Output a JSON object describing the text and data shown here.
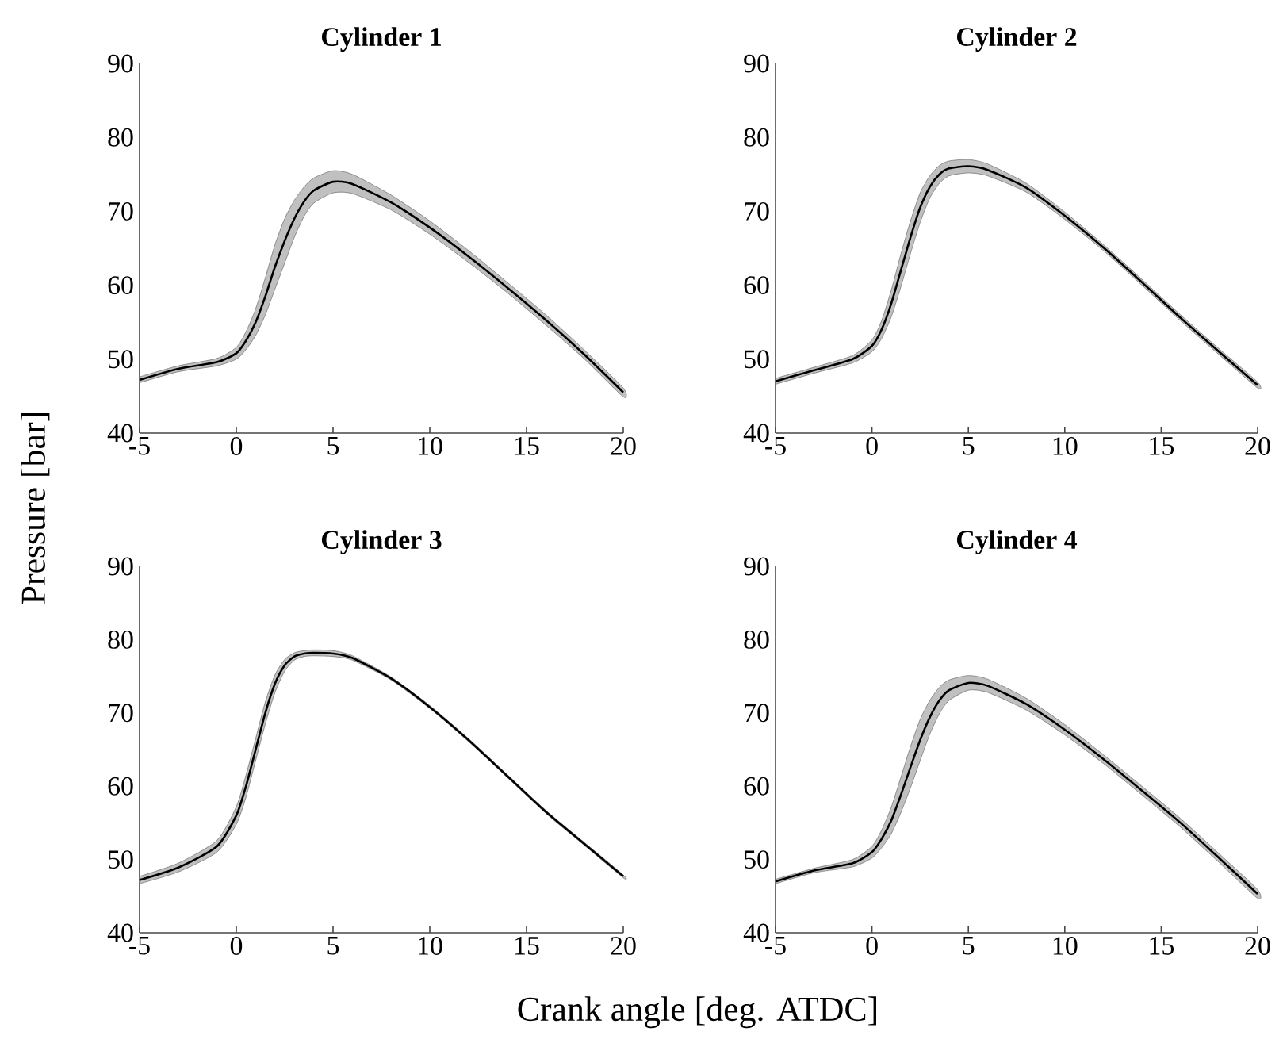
{
  "chart_data": [
    {
      "type": "line",
      "title": "Cylinder 1",
      "ylabel": "Pressure [bar]",
      "xlabel": "Crank angle [deg. ATDC]",
      "xlim": [
        -5,
        20
      ],
      "ylim": [
        40,
        90
      ],
      "xticks": [
        -5,
        0,
        5,
        10,
        15,
        20
      ],
      "yticks": [
        40,
        50,
        60,
        70,
        80,
        90
      ],
      "x": [
        -5,
        -3,
        -1,
        0,
        0.5,
        1,
        1.5,
        2,
        2.5,
        3,
        3.5,
        4,
        5,
        6,
        8,
        10,
        12,
        14,
        16,
        18,
        20
      ],
      "series": [
        {
          "color": "#000000",
          "values": [
            47.2,
            48.7,
            49.6,
            50.8,
            52.5,
            55,
            58.5,
            62.5,
            66,
            69,
            71.3,
            72.8,
            74,
            73.7,
            71.2,
            67.8,
            63.9,
            59.7,
            55.3,
            50.6,
            45.5
          ],
          "lower": [
            46.8,
            48.3,
            49.1,
            50.0,
            51.3,
            53.2,
            56.0,
            59.5,
            63.0,
            66.5,
            69.3,
            71.1,
            72.5,
            72.4,
            70.2,
            66.9,
            63.1,
            59.0,
            54.6,
            50.0,
            44.9
          ],
          "upper": [
            47.6,
            49.1,
            50.1,
            51.6,
            53.7,
            56.8,
            61.0,
            65.5,
            69.0,
            71.5,
            73.3,
            74.5,
            75.5,
            75.0,
            72.2,
            68.7,
            64.7,
            60.4,
            56.0,
            51.2,
            46.1
          ]
        }
      ]
    },
    {
      "type": "line",
      "title": "Cylinder 2",
      "xlim": [
        -5,
        20
      ],
      "ylim": [
        40,
        90
      ],
      "xticks": [
        -5,
        0,
        5,
        10,
        15,
        20
      ],
      "yticks": [
        40,
        50,
        60,
        70,
        80,
        90
      ],
      "x": [
        -5,
        -3,
        -1,
        0,
        0.5,
        1,
        1.5,
        2,
        2.5,
        3,
        3.5,
        4,
        5,
        6,
        8,
        10,
        12,
        14,
        16,
        18,
        20
      ],
      "series": [
        {
          "color": "#000000",
          "values": [
            47,
            48.5,
            50,
            51.8,
            54,
            57.5,
            62,
            66.5,
            70.5,
            73.3,
            75,
            75.8,
            76.1,
            75.6,
            73.2,
            69.4,
            65.1,
            60.4,
            55.6,
            51,
            46.5
          ],
          "lower": [
            46.6,
            48.1,
            49.5,
            51.0,
            52.8,
            55.7,
            59.8,
            64.3,
            68.5,
            71.8,
            73.8,
            74.8,
            75.2,
            74.8,
            72.6,
            68.9,
            64.7,
            60.0,
            55.2,
            50.6,
            46.1
          ],
          "upper": [
            47.4,
            48.9,
            50.5,
            52.6,
            55.2,
            59.3,
            64.2,
            68.7,
            72.5,
            74.8,
            76.2,
            76.8,
            77.0,
            76.4,
            73.8,
            69.9,
            65.5,
            60.8,
            56.0,
            51.4,
            46.9
          ]
        }
      ]
    },
    {
      "type": "line",
      "title": "Cylinder 3",
      "xlim": [
        -5,
        20
      ],
      "ylim": [
        40,
        90
      ],
      "xticks": [
        -5,
        0,
        5,
        10,
        15,
        20
      ],
      "yticks": [
        40,
        50,
        60,
        70,
        80,
        90
      ],
      "x": [
        -5,
        -3,
        -1,
        0,
        0.5,
        1,
        1.5,
        2,
        2.5,
        3,
        3.5,
        4,
        5,
        6,
        8,
        10,
        12,
        14,
        16,
        18,
        20
      ],
      "series": [
        {
          "color": "#000000",
          "values": [
            47.2,
            48.9,
            51.8,
            56,
            60,
            65,
            70,
            74,
            76.5,
            77.7,
            78.1,
            78.2,
            78.1,
            77.5,
            74.7,
            70.8,
            66.3,
            61.4,
            56.5,
            52.1,
            47.7
          ],
          "lower": [
            46.7,
            48.3,
            51.0,
            54.8,
            58.5,
            63.5,
            68.5,
            72.8,
            75.7,
            77.2,
            77.7,
            77.8,
            77.7,
            77.2,
            74.5,
            70.6,
            66.1,
            61.2,
            56.3,
            51.9,
            47.5
          ],
          "upper": [
            47.7,
            49.5,
            52.6,
            57.2,
            61.5,
            66.5,
            71.5,
            75.2,
            77.3,
            78.2,
            78.5,
            78.6,
            78.5,
            77.8,
            74.9,
            71.0,
            66.5,
            61.6,
            56.7,
            52.3,
            47.9
          ]
        }
      ]
    },
    {
      "type": "line",
      "title": "Cylinder 4",
      "xlim": [
        -5,
        20
      ],
      "ylim": [
        40,
        90
      ],
      "xticks": [
        -5,
        0,
        5,
        10,
        15,
        20
      ],
      "yticks": [
        40,
        50,
        60,
        70,
        80,
        90
      ],
      "x": [
        -5,
        -3,
        -1,
        0,
        0.5,
        1,
        1.5,
        2,
        2.5,
        3,
        3.5,
        4,
        5,
        6,
        8,
        10,
        12,
        14,
        16,
        18,
        20
      ],
      "series": [
        {
          "color": "#000000",
          "values": [
            47,
            48.5,
            49.5,
            51,
            52.8,
            55.3,
            58.8,
            62.6,
            66.3,
            69.4,
            71.7,
            73.1,
            74.1,
            73.7,
            71.2,
            67.7,
            63.7,
            59.4,
            55,
            50.2,
            45.3
          ],
          "lower": [
            46.7,
            48.2,
            49.0,
            50.2,
            51.6,
            53.5,
            56.4,
            59.8,
            63.5,
            67.1,
            69.9,
            71.7,
            73.1,
            72.8,
            70.4,
            67.0,
            63.1,
            58.8,
            54.4,
            49.6,
            44.7
          ],
          "upper": [
            47.3,
            48.8,
            50.0,
            51.8,
            54.0,
            57.1,
            61.2,
            65.4,
            69.1,
            71.7,
            73.5,
            74.5,
            75.1,
            74.6,
            72.0,
            68.4,
            64.3,
            60.0,
            55.6,
            50.8,
            45.9
          ]
        }
      ]
    }
  ]
}
